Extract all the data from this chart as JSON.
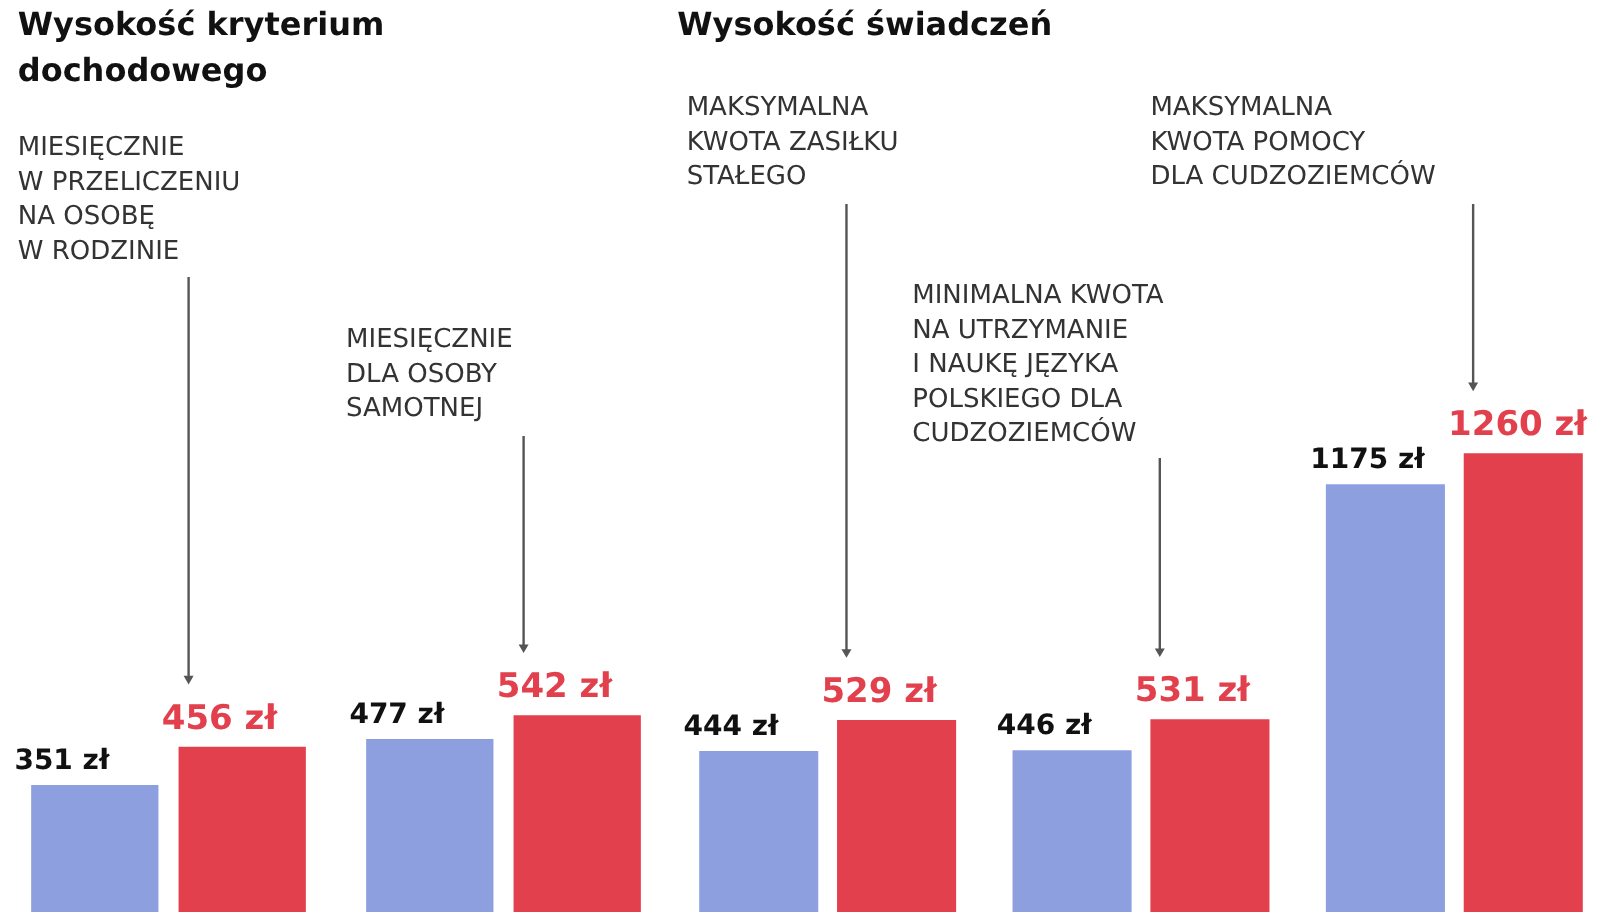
{
  "chart_data": [
    {
      "type": "bar",
      "title": "Wysokość kryterium\ndochodowego",
      "categories": [
        null,
        null
      ],
      "ylim": [
        0,
        2500
      ],
      "series": [
        {
          "color": "#8e9fe0",
          "values": [
            351,
            477
          ],
          "value_labels": [
            "351 zł",
            "477 zł"
          ]
        },
        {
          "color": "#e2404c",
          "values": [
            456,
            542
          ],
          "value_labels": [
            "456 zł",
            "542 zł"
          ]
        }
      ],
      "annotations": [
        "MIESIĘCZNIE\nW PRZELICZENIU\nNA OSOBĘ\nW RODZINIE",
        "MIESIĘCZNIE\nDLA OSOBY\nSAMOTNEJ"
      ]
    },
    {
      "type": "bar",
      "title": "Wysokość świadczeń",
      "categories": [
        null,
        null,
        null
      ],
      "ylim": [
        0,
        2500
      ],
      "series": [
        {
          "color": "#8e9fe0",
          "values": [
            444,
            446,
            1175
          ],
          "value_labels": [
            "444 zł",
            "446 zł",
            "1175 zł"
          ]
        },
        {
          "color": "#e2404c",
          "values": [
            529,
            531,
            1260
          ],
          "value_labels": [
            "529 zł",
            "531 zł",
            "1260 zł"
          ]
        }
      ],
      "annotations": [
        "MAKSYMALNA\nKWOTA ZASIŁKU\nSTAŁEGO",
        "MINIMALNA KWOTA\nNA UTRZYMANIE\nI NAUKĘ JĘZYKA\nPOLSKIEGO DLA\nCUDZOZIEMCÓW",
        "MAKSYMALNA\nKWOTA POMOCY\nDLA CUDZOZIEMCÓW"
      ]
    }
  ]
}
